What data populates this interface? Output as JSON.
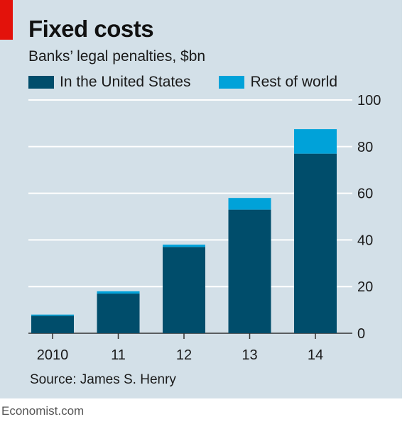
{
  "header": {
    "title": "Fixed costs",
    "subtitle": "Banks’ legal penalties, $bn"
  },
  "legend": [
    {
      "label": "In the United States",
      "color": "#004d6b"
    },
    {
      "label": "Rest of world",
      "color": "#00a2d9"
    }
  ],
  "footer": {
    "source": "Source: James S. Henry",
    "brand": "Economist.com"
  },
  "colors": {
    "background": "#d3e0e8",
    "accent_tag": "#e3120b",
    "grid": "#ffffff"
  },
  "chart_data": {
    "type": "bar",
    "stacked": true,
    "title": "Fixed costs",
    "subtitle": "Banks’ legal penalties, $bn",
    "categories": [
      "2010",
      "11",
      "12",
      "13",
      "14"
    ],
    "series": [
      {
        "name": "In the United States",
        "values": [
          7.5,
          17,
          37,
          53,
          77
        ]
      },
      {
        "name": "Rest of world",
        "values": [
          0.5,
          1,
          1,
          5,
          10.5
        ]
      }
    ],
    "ylim": [
      0,
      100
    ],
    "yticks": [
      0,
      20,
      40,
      60,
      80,
      100
    ],
    "y_axis_side": "right",
    "grid": true,
    "legend_position": "top-left"
  }
}
